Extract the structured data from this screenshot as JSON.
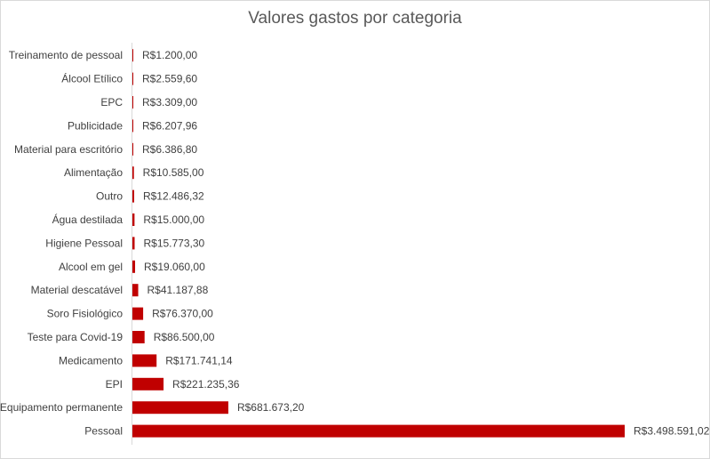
{
  "chart_data": {
    "type": "bar",
    "orientation": "horizontal",
    "title": "Valores gastos por categoria",
    "xlabel": "",
    "ylabel": "",
    "xlim": [
      0,
      3498591.02
    ],
    "grid": false,
    "legend": "none",
    "bar_color": "#C00000",
    "categories": [
      "Treinamento de pessoal",
      "Álcool Etílico",
      "EPC",
      "Publicidade",
      "Material para escritório",
      "Alimentação",
      "Outro",
      "Água destilada",
      "Higiene Pessoal",
      "Alcool em gel",
      "Material descatável",
      "Soro Fisiológico",
      "Teste para Covid-19",
      "Medicamento",
      "EPI",
      "Equipamento permanente",
      "Pessoal"
    ],
    "values": [
      1200.0,
      2559.6,
      3309.0,
      6207.96,
      6386.8,
      10585.0,
      12486.32,
      15000.0,
      15773.3,
      19060.0,
      41187.88,
      76370.0,
      86500.0,
      171741.14,
      221235.36,
      681673.2,
      3498591.02
    ],
    "value_labels": [
      "R$1.200,00",
      "R$2.559,60",
      "R$3.309,00",
      "R$6.207,96",
      "R$6.386,80",
      "R$10.585,00",
      "R$12.486,32",
      "R$15.000,00",
      "R$15.773,30",
      "R$19.060,00",
      "R$41.187,88",
      "R$76.370,00",
      "R$86.500,00",
      "R$171.741,14",
      "R$221.235,36",
      "R$681.673,20",
      "R$3.498.591,02"
    ]
  }
}
